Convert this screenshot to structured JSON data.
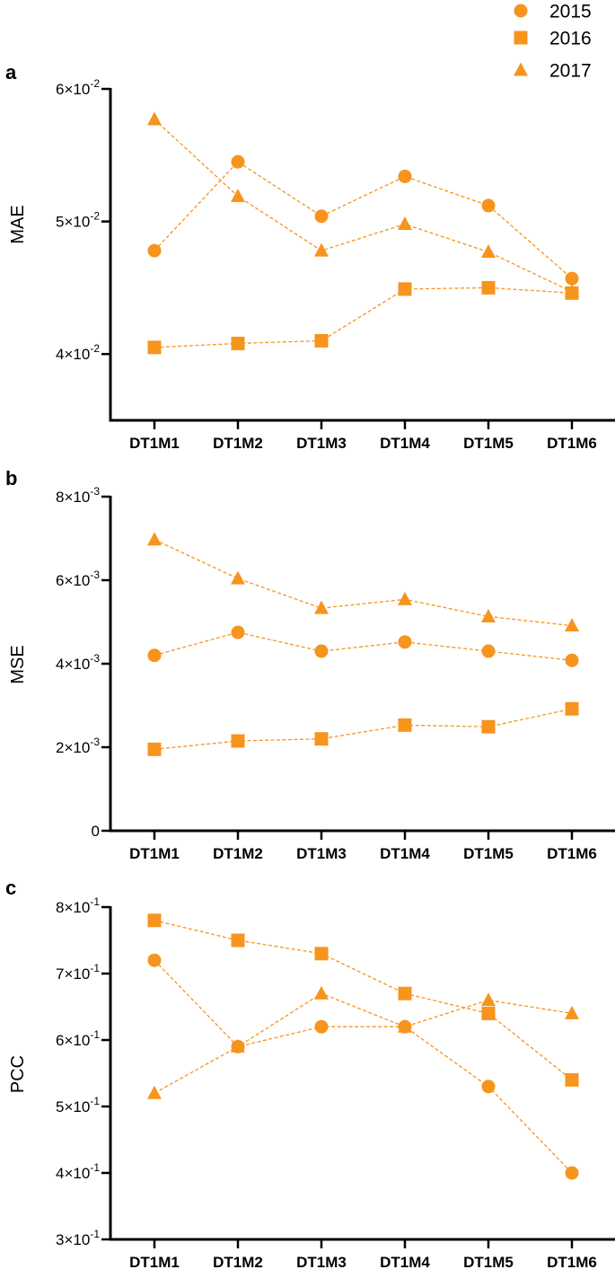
{
  "legend": {
    "entries": [
      {
        "name": "2015",
        "marker": "circle"
      },
      {
        "name": "2016",
        "marker": "square"
      },
      {
        "name": "2017",
        "marker": "triangle"
      }
    ]
  },
  "colors": {
    "series": "#F7941D",
    "axis": "#000000"
  },
  "chart_data": [
    {
      "panel": "a",
      "type": "line",
      "ylabel": "MAE",
      "xlabel": "",
      "categories": [
        "DT1M1",
        "DT1M2",
        "DT1M3",
        "DT1M4",
        "DT1M5",
        "DT1M6"
      ],
      "ylim": [
        0.035,
        0.06
      ],
      "yticks": [
        {
          "value": 0.06,
          "mant": "6",
          "exp": "-2"
        },
        {
          "value": 0.05,
          "mant": "5",
          "exp": "-2"
        },
        {
          "value": 0.04,
          "mant": "4",
          "exp": "-2"
        }
      ],
      "series": [
        {
          "name": "2015",
          "values": [
            0.0478,
            0.0545,
            0.0504,
            0.0534,
            0.0512,
            0.0457
          ]
        },
        {
          "name": "2016",
          "values": [
            0.0405,
            0.0408,
            0.041,
            0.0449,
            0.045,
            0.0446
          ]
        },
        {
          "name": "2017",
          "values": [
            0.0577,
            0.0519,
            0.0478,
            0.0498,
            0.0477,
            0.0447
          ]
        }
      ]
    },
    {
      "panel": "b",
      "type": "line",
      "ylabel": "MSE",
      "xlabel": "",
      "categories": [
        "DT1M1",
        "DT1M2",
        "DT1M3",
        "DT1M4",
        "DT1M5",
        "DT1M6"
      ],
      "ylim": [
        0,
        0.008
      ],
      "yticks": [
        {
          "value": 0.008,
          "mant": "8",
          "exp": "-3"
        },
        {
          "value": 0.006,
          "mant": "6",
          "exp": "-3"
        },
        {
          "value": 0.004,
          "mant": "4",
          "exp": "-3"
        },
        {
          "value": 0.002,
          "mant": "2",
          "exp": "-3"
        },
        {
          "value": 0,
          "mant": "0",
          "exp": ""
        }
      ],
      "series": [
        {
          "name": "2015",
          "values": [
            0.0042,
            0.00475,
            0.0043,
            0.00452,
            0.0043,
            0.00408
          ]
        },
        {
          "name": "2016",
          "values": [
            0.00195,
            0.00215,
            0.0022,
            0.00253,
            0.00249,
            0.00292
          ]
        },
        {
          "name": "2017",
          "values": [
            0.00697,
            0.00604,
            0.00533,
            0.00554,
            0.00513,
            0.00491
          ]
        }
      ]
    },
    {
      "panel": "c",
      "type": "line",
      "ylabel": "PCC",
      "xlabel": "",
      "categories": [
        "DT1M1",
        "DT1M2",
        "DT1M3",
        "DT1M4",
        "DT1M5",
        "DT1M6"
      ],
      "ylim": [
        0.3,
        0.8
      ],
      "yticks": [
        {
          "value": 0.8,
          "mant": "8",
          "exp": "-1"
        },
        {
          "value": 0.7,
          "mant": "7",
          "exp": "-1"
        },
        {
          "value": 0.6,
          "mant": "6",
          "exp": "-1"
        },
        {
          "value": 0.5,
          "mant": "5",
          "exp": "-1"
        },
        {
          "value": 0.4,
          "mant": "4",
          "exp": "-1"
        },
        {
          "value": 0.3,
          "mant": "3",
          "exp": "-1"
        }
      ],
      "series": [
        {
          "name": "2015",
          "values": [
            0.72,
            0.59,
            0.62,
            0.62,
            0.53,
            0.4
          ]
        },
        {
          "name": "2016",
          "values": [
            0.78,
            0.75,
            0.73,
            0.67,
            0.64,
            0.54
          ]
        },
        {
          "name": "2017",
          "values": [
            0.52,
            0.59,
            0.67,
            0.62,
            0.66,
            0.64
          ]
        }
      ]
    }
  ]
}
